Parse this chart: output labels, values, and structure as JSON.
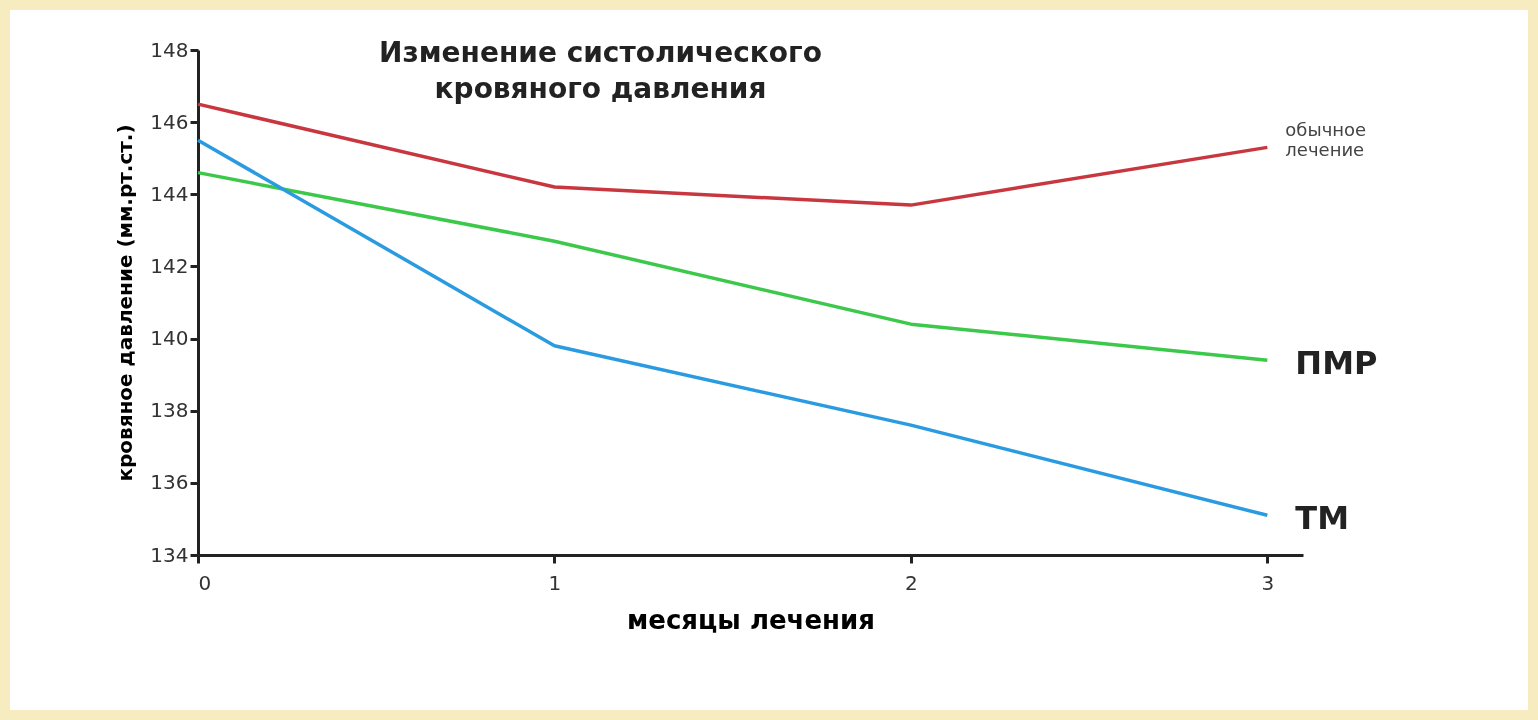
{
  "chart_data": {
    "type": "line",
    "title": [
      "Изменение систолического",
      "кровяного давления"
    ],
    "xlabel": "месяцы лечения",
    "ylabel": "кровяное давление (мм.рт.ст.)",
    "x": [
      0,
      1,
      2,
      3
    ],
    "xlim": [
      0,
      3.1
    ],
    "xticks": [
      0,
      1,
      2,
      3
    ],
    "ylim": [
      134,
      148
    ],
    "yticks": [
      134,
      136,
      138,
      140,
      142,
      144,
      146,
      148
    ],
    "grid": false,
    "legend": false,
    "series": [
      {
        "name": "обычное лечение",
        "color": "#c8373f",
        "values": [
          146.5,
          144.2,
          143.7,
          145.3
        ]
      },
      {
        "name": "ПМР",
        "color": "#3cc84a",
        "values": [
          144.6,
          142.7,
          140.4,
          139.4
        ]
      },
      {
        "name": "ТМ",
        "color": "#2a9be0",
        "values": [
          145.5,
          139.8,
          137.6,
          135.1
        ]
      }
    ]
  }
}
